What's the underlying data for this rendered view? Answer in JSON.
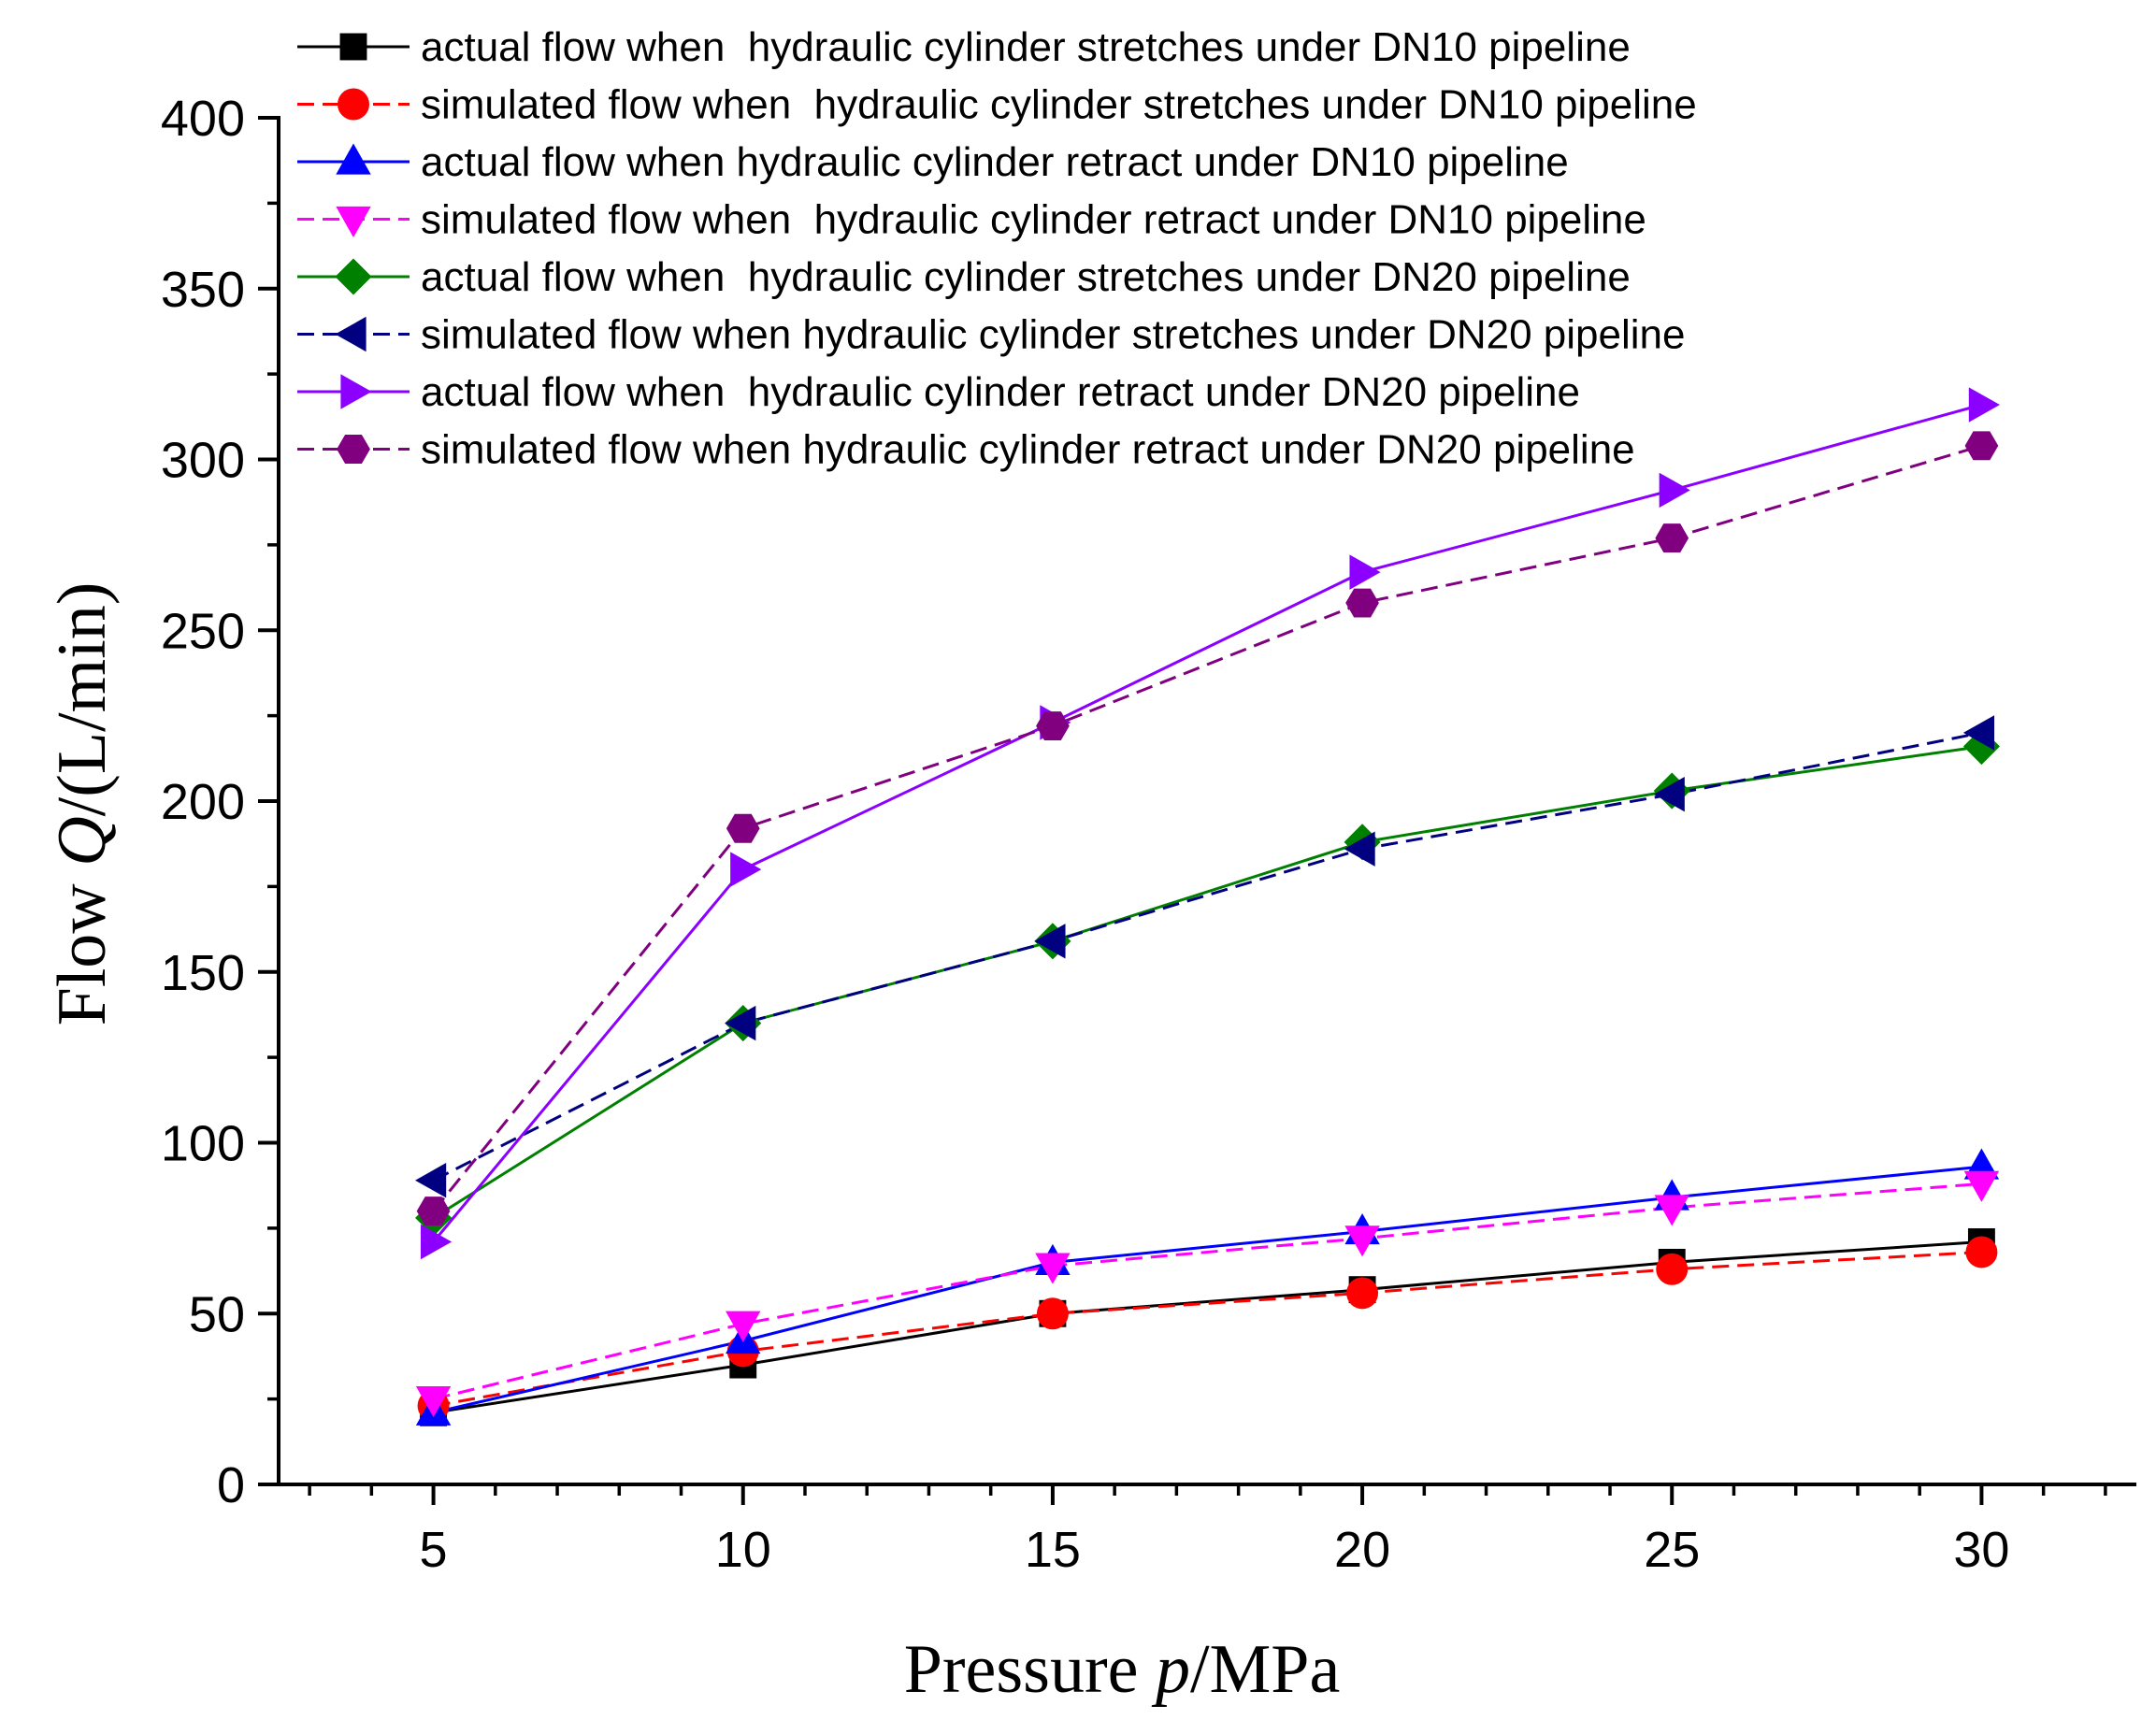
{
  "chart_data": {
    "type": "line",
    "title": "",
    "xlabel": {
      "prefix": "Pressure ",
      "var": "p",
      "suffix": "/MPa"
    },
    "ylabel": {
      "prefix": "Flow ",
      "var": "Q",
      "suffix": "/(L/min)"
    },
    "xlim": [
      2.5,
      32.5
    ],
    "ylim": [
      0,
      400
    ],
    "x_ticks": [
      5,
      10,
      15,
      20,
      25,
      30
    ],
    "y_ticks": [
      0,
      50,
      100,
      150,
      200,
      250,
      300,
      350,
      400
    ],
    "x_minor_step": 1,
    "y_minor_step": 25,
    "grid": false,
    "legend_position": "top",
    "x": [
      5,
      10,
      15,
      20,
      25,
      30
    ],
    "series": [
      {
        "name": "actual flow when  hydraulic cylinder stretches under DN10 pipeline",
        "values": [
          21,
          35,
          50,
          57,
          65,
          71
        ],
        "color": "#000000",
        "dash": "solid",
        "marker": "square"
      },
      {
        "name": "simulated flow when  hydraulic cylinder stretches under DN10 pipeline",
        "values": [
          23,
          39,
          50,
          56,
          63,
          68
        ],
        "color": "#ff0000",
        "dash": "dashed",
        "marker": "circle"
      },
      {
        "name": "actual flow when hydraulic cylinder retract under DN10 pipeline",
        "values": [
          21,
          42,
          65,
          74,
          84,
          93
        ],
        "color": "#0000ff",
        "dash": "solid",
        "marker": "triangle-up"
      },
      {
        "name": "simulated flow when  hydraulic cylinder retract under DN10 pipeline",
        "values": [
          25,
          47,
          64,
          72,
          81,
          88
        ],
        "color": "#ff00ff",
        "dash": "dashed",
        "marker": "triangle-down"
      },
      {
        "name": "actual flow when  hydraulic cylinder stretches under DN20 pipeline",
        "values": [
          78,
          135,
          159,
          188,
          203,
          216
        ],
        "color": "#008000",
        "dash": "solid",
        "marker": "diamond"
      },
      {
        "name": "simulated flow when hydraulic cylinder stretches under DN20 pipeline",
        "values": [
          89,
          135,
          159,
          186,
          202,
          220
        ],
        "color": "#000080",
        "dash": "dashed",
        "marker": "triangle-left"
      },
      {
        "name": "actual flow when  hydraulic cylinder retract under DN20 pipeline",
        "values": [
          71,
          180,
          223,
          267,
          291,
          316
        ],
        "color": "#8b00ff",
        "dash": "solid",
        "marker": "triangle-right"
      },
      {
        "name": "simulated flow when hydraulic cylinder retract under DN20 pipeline",
        "values": [
          80,
          192,
          222,
          258,
          277,
          304
        ],
        "color": "#800080",
        "dash": "dashed",
        "marker": "hexagon"
      }
    ]
  }
}
